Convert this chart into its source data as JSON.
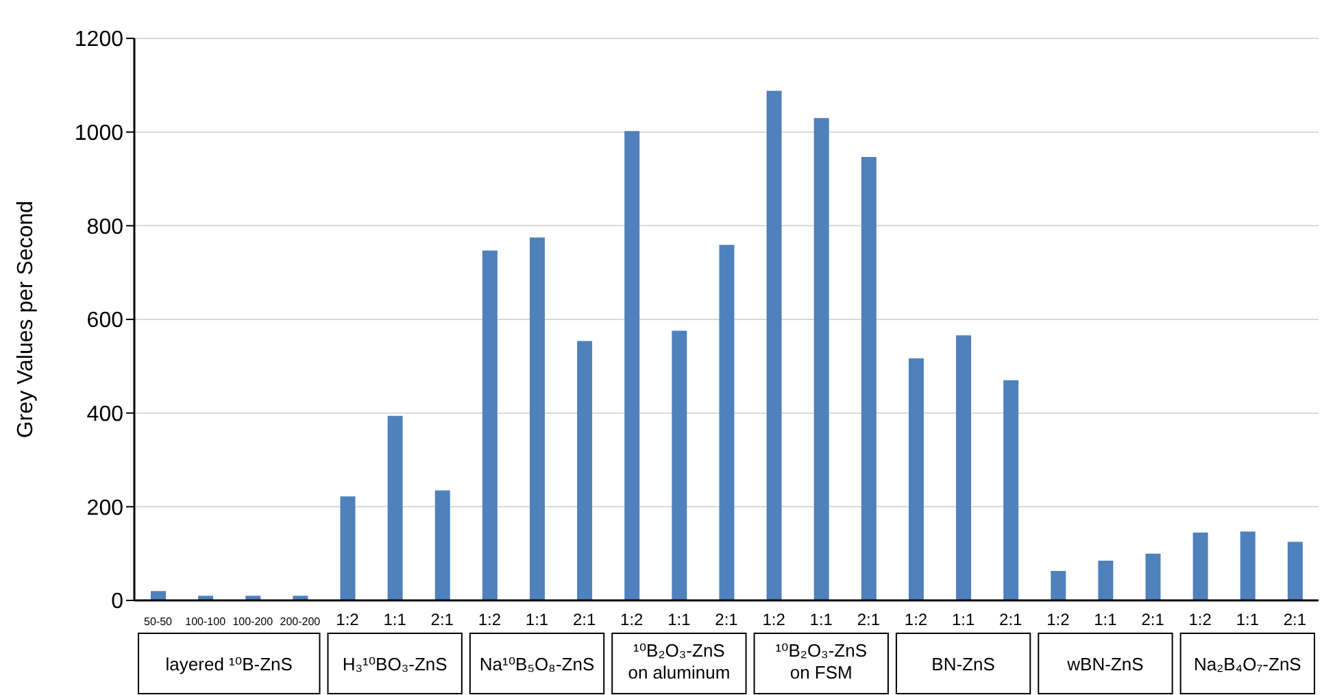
{
  "chart_data": {
    "type": "bar",
    "ylabel": "Grey Values per Second",
    "categories": [
      "50-50",
      "100-100",
      "100-200",
      "200-200",
      "1:2",
      "1:1",
      "2:1",
      "1:2",
      "1:1",
      "2:1",
      "1:2",
      "1:1",
      "2:1",
      "1:2",
      "1:1",
      "2:1",
      "1:2",
      "1:1",
      "2:1",
      "1:2",
      "1:1",
      "2:1",
      "1:2",
      "1:1",
      "2:1"
    ],
    "values": [
      20,
      10,
      10,
      10,
      222,
      394,
      235,
      747,
      775,
      554,
      1002,
      576,
      759,
      1088,
      1030,
      947,
      517,
      566,
      470,
      63,
      85,
      100,
      145,
      147,
      125
    ],
    "color": "#4f81bd",
    "ylim": [
      0,
      1200
    ],
    "yticks": [
      0,
      200,
      400,
      600,
      800,
      1000,
      1200
    ],
    "grid": "y",
    "annotations": [
      "layered ¹⁰B-ZnS",
      "H₃¹⁰BO₃-ZnS",
      "Na¹⁰B₅O₈-ZnS",
      "¹⁰B₂O₃-ZnS on aluminum",
      "¹⁰B₂O₃-ZnS on FSM",
      "BN-ZnS",
      "wBN-ZnS",
      "Na₂B₄O₇-ZnS"
    ]
  }
}
